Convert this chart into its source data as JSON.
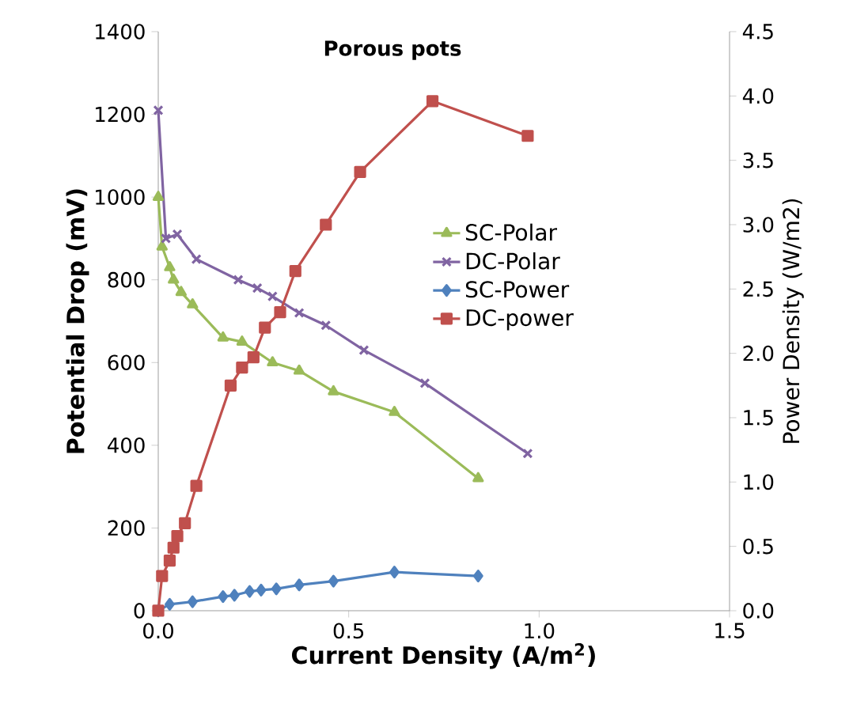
{
  "chart_data": {
    "type": "line",
    "title": "Porous pots",
    "xlabel": "Current Density (A/m$^{2}$)",
    "ylabel": "Potential Drop (mV)",
    "y2label": "Power Density (W/m2)",
    "xlim": [
      0,
      1.5
    ],
    "xticks": [
      {
        "value": 0,
        "label": "0.0"
      },
      {
        "value": 0.5,
        "label": "0.5"
      },
      {
        "value": 1,
        "label": "1.0"
      },
      {
        "value": 1.5,
        "label": "1.5"
      }
    ],
    "ylim": [
      0,
      1400
    ],
    "yticks": [
      0,
      200,
      400,
      600,
      800,
      1000,
      1200,
      1400
    ],
    "y2lim": [
      0,
      4.5
    ],
    "y2ticks": [
      {
        "value": 0,
        "label": "0.0"
      },
      {
        "value": 0.5,
        "label": "0.5"
      },
      {
        "value": 1,
        "label": "1.0"
      },
      {
        "value": 1.5,
        "label": "1.5"
      },
      {
        "value": 2,
        "label": "2.0"
      },
      {
        "value": 2.5,
        "label": "2.5"
      },
      {
        "value": 3,
        "label": "3.0"
      },
      {
        "value": 3.5,
        "label": "3.5"
      },
      {
        "value": 4,
        "label": "4.0"
      },
      {
        "value": 4.5,
        "label": "4.5"
      }
    ],
    "grid": false,
    "legend": "center",
    "series": [
      {
        "name": "SC-Polar",
        "color": "#9bbb59",
        "marker": "triangle",
        "x": [
          0.0,
          0.01,
          0.03,
          0.04,
          0.06,
          0.09,
          0.17,
          0.22,
          0.3,
          0.37,
          0.46,
          0.62,
          0.84
        ],
        "values": [
          1000,
          880,
          830,
          800,
          770,
          740,
          660,
          650,
          600,
          580,
          530,
          480,
          320
        ]
      },
      {
        "name": "DC-Polar",
        "color": "#8064a2",
        "marker": "cross",
        "x": [
          0.0,
          0.02,
          0.05,
          0.1,
          0.21,
          0.26,
          0.3,
          0.37,
          0.44,
          0.54,
          0.7,
          0.97
        ],
        "values": [
          1210,
          900,
          910,
          850,
          800,
          780,
          760,
          720,
          690,
          630,
          550,
          380
        ]
      },
      {
        "name": "SC-Power",
        "color": "#4f81bd",
        "marker": "diamond",
        "axis": "y2",
        "x": [
          0.0,
          0.03,
          0.09,
          0.17,
          0.2,
          0.24,
          0.27,
          0.31,
          0.37,
          0.46,
          0.62,
          0.84
        ],
        "values": [
          0,
          0.05,
          0.07,
          0.11,
          0.12,
          0.15,
          0.16,
          0.17,
          0.2,
          0.23,
          0.3,
          0.27
        ]
      },
      {
        "name": "DC-power",
        "color": "#c0504d",
        "marker": "square",
        "axis": "y2",
        "x": [
          0.0,
          0.01,
          0.03,
          0.04,
          0.05,
          0.07,
          0.1,
          0.19,
          0.22,
          0.25,
          0.28,
          0.32,
          0.36,
          0.44,
          0.53,
          0.72,
          0.97
        ],
        "values": [
          0,
          0.27,
          0.39,
          0.49,
          0.58,
          0.68,
          0.97,
          1.75,
          1.89,
          1.97,
          2.2,
          2.32,
          2.64,
          3.0,
          3.41,
          3.96,
          3.69
        ]
      }
    ]
  }
}
